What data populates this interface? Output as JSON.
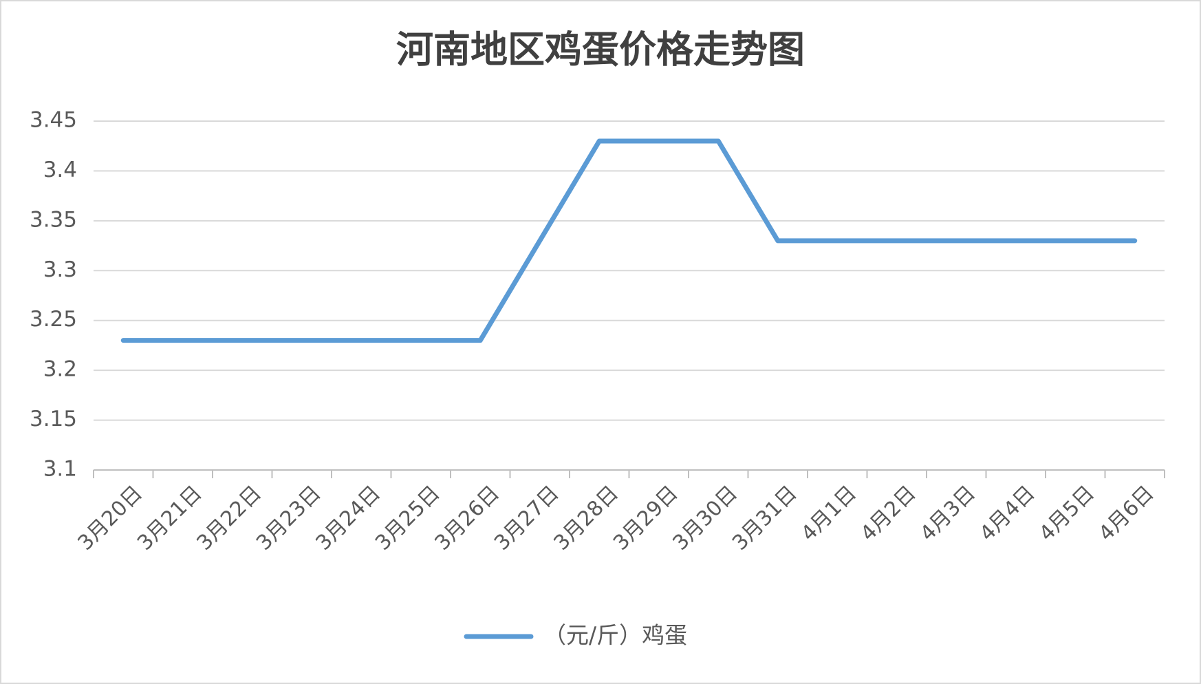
{
  "chart_data": {
    "type": "line",
    "title": "河南地区鸡蛋价格走势图",
    "categories": [
      "3月20日",
      "3月21日",
      "3月22日",
      "3月23日",
      "3月24日",
      "3月25日",
      "3月26日",
      "3月27日",
      "3月28日",
      "3月29日",
      "3月30日",
      "3月31日",
      "4月1日",
      "4月2日",
      "4月3日",
      "4月4日",
      "4月5日",
      "4月6日"
    ],
    "series": [
      {
        "name": "（元/斤）鸡蛋",
        "color": "#5b9bd5",
        "values": [
          3.23,
          3.23,
          3.23,
          3.23,
          3.23,
          3.23,
          3.23,
          3.33,
          3.43,
          3.43,
          3.43,
          3.33,
          3.33,
          3.33,
          3.33,
          3.33,
          3.33,
          3.33
        ]
      }
    ],
    "ylim": [
      3.1,
      3.45
    ],
    "yticks": [
      3.1,
      3.15,
      3.2,
      3.25,
      3.3,
      3.35,
      3.4,
      3.45
    ],
    "grid": true,
    "legend": "bottom"
  }
}
